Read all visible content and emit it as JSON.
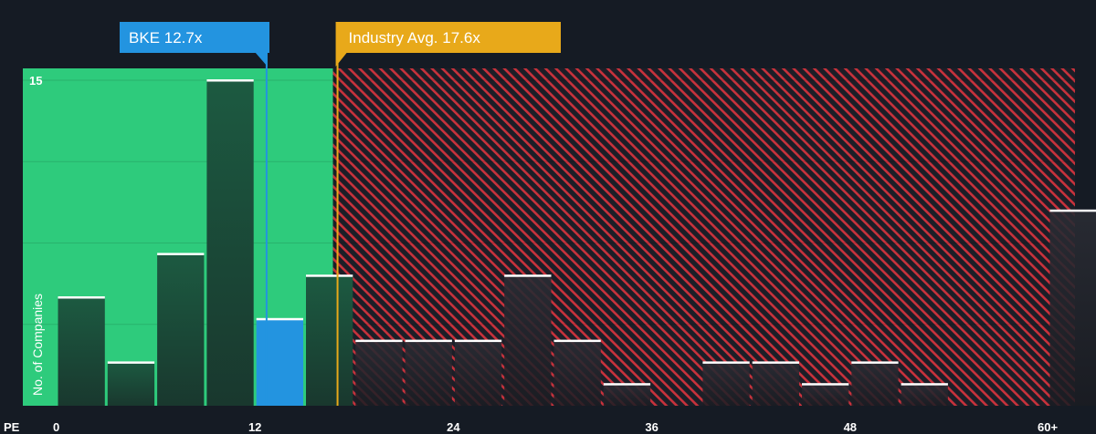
{
  "chart_data": {
    "type": "bar",
    "title": "",
    "xlabel": "PE",
    "ylabel": "No. of Companies",
    "xlim": [
      0,
      61
    ],
    "ylim": [
      0,
      15.5
    ],
    "y_ticks": [
      15
    ],
    "x_ticks": [
      {
        "value": 0,
        "label": "0"
      },
      {
        "value": 12,
        "label": "12"
      },
      {
        "value": 24,
        "label": "24"
      },
      {
        "value": 36,
        "label": "36"
      },
      {
        "value": 48,
        "label": "48"
      },
      {
        "value": 60,
        "label": "60+"
      }
    ],
    "bin_width": 3,
    "bins": [
      {
        "start": 0,
        "value": 5
      },
      {
        "start": 3,
        "value": 2
      },
      {
        "start": 6,
        "value": 7
      },
      {
        "start": 9,
        "value": 15
      },
      {
        "start": 12,
        "value": 4,
        "highlight": true
      },
      {
        "start": 15,
        "value": 6
      },
      {
        "start": 18,
        "value": 3
      },
      {
        "start": 21,
        "value": 3
      },
      {
        "start": 24,
        "value": 3
      },
      {
        "start": 27,
        "value": 6
      },
      {
        "start": 30,
        "value": 3
      },
      {
        "start": 33,
        "value": 1
      },
      {
        "start": 36,
        "value": 0
      },
      {
        "start": 39,
        "value": 2
      },
      {
        "start": 42,
        "value": 2
      },
      {
        "start": 45,
        "value": 1
      },
      {
        "start": 48,
        "value": 2
      },
      {
        "start": 51,
        "value": 1
      },
      {
        "start": 54,
        "value": 0
      },
      {
        "start": 57,
        "value": 0
      },
      {
        "start": 60,
        "value": 9
      }
    ],
    "company": {
      "label": "BKE 12.7x",
      "value": 12.7
    },
    "industry": {
      "label": "Industry Avg. 17.6x",
      "value": 17.6
    },
    "colors": {
      "background": "#151b24",
      "fair_zone": "#2ecb7c",
      "bar_dark": "#1a4a37",
      "highlight_bar": "#2394e0",
      "hatch": "#c8323c",
      "company_callout": "#2394e0",
      "industry_callout": "#e8a91a"
    }
  }
}
